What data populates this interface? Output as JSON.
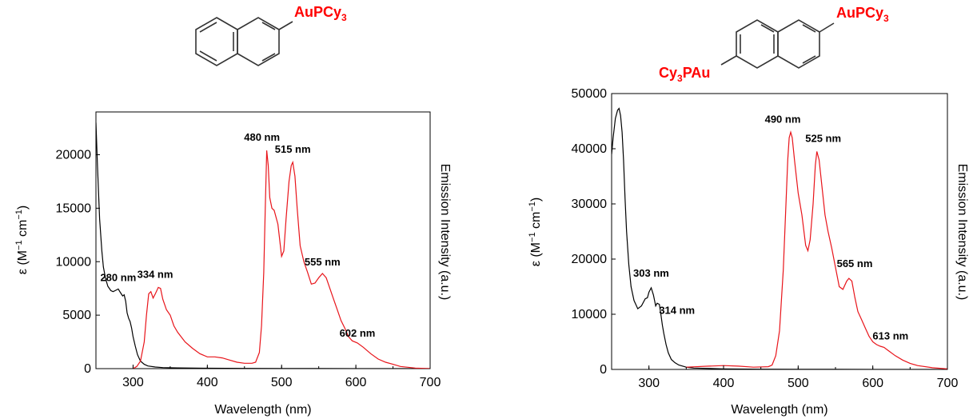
{
  "colors": {
    "absorption": "#000000",
    "emission": "#e8141a",
    "molecule_label": "#ff0000"
  },
  "chart_data": [
    {
      "type": "line",
      "structure_label": {
        "main": "AuPCy",
        "sub": "3"
      },
      "xlabel": "Wavelength (nm)",
      "ylabel": "ε (M⁻¹ cm⁻¹)",
      "y2label": "Emission Intensity (a.u.)",
      "xlim": [
        250,
        700
      ],
      "ylim": [
        0,
        24000
      ],
      "xticks": [
        "300",
        "400",
        "500",
        "600",
        "700"
      ],
      "yticks": [
        "0",
        "5000",
        "10000",
        "15000",
        "20000"
      ],
      "series": [
        {
          "role": "absorption",
          "x": [
            250,
            252,
            255,
            258,
            260,
            263,
            266,
            270,
            273,
            276,
            280,
            283,
            286,
            288,
            290,
            292,
            294,
            296,
            298,
            300,
            303,
            306,
            310,
            315,
            320,
            330,
            340,
            360,
            400,
            450,
            500,
            550,
            600,
            700
          ],
          "y": [
            23000,
            19000,
            14000,
            11000,
            9500,
            8400,
            7700,
            7300,
            7200,
            7300,
            7450,
            7100,
            6800,
            6900,
            6300,
            5200,
            4700,
            4400,
            3800,
            3000,
            2100,
            1300,
            700,
            400,
            250,
            150,
            100,
            70,
            40,
            20,
            10,
            5,
            0,
            0
          ]
        },
        {
          "role": "emission",
          "x": [
            300,
            305,
            310,
            315,
            318,
            321,
            324,
            327,
            330,
            334,
            337,
            340,
            345,
            350,
            355,
            360,
            370,
            380,
            390,
            400,
            410,
            420,
            430,
            440,
            450,
            460,
            465,
            470,
            473,
            476,
            478,
            480,
            482,
            484,
            487,
            490,
            495,
            500,
            503,
            506,
            510,
            513,
            515,
            518,
            521,
            525,
            530,
            535,
            540,
            545,
            550,
            555,
            560,
            565,
            570,
            575,
            580,
            585,
            590,
            595,
            602,
            610,
            620,
            630,
            640,
            650,
            660,
            680,
            700
          ],
          "y": [
            0,
            200,
            700,
            2500,
            5000,
            7000,
            7200,
            6600,
            7000,
            7600,
            7500,
            6500,
            5500,
            5000,
            4000,
            3400,
            2500,
            1900,
            1400,
            1100,
            1100,
            1000,
            800,
            600,
            500,
            500,
            600,
            1500,
            4000,
            9000,
            15000,
            20400,
            19000,
            16000,
            15000,
            14800,
            13500,
            10500,
            11000,
            14000,
            17500,
            19000,
            19300,
            18000,
            15000,
            11500,
            10000,
            9000,
            7900,
            8000,
            8500,
            8900,
            8500,
            7500,
            6500,
            5500,
            4500,
            3800,
            3000,
            2600,
            2400,
            2000,
            1400,
            900,
            600,
            400,
            200,
            50,
            0
          ]
        }
      ],
      "annotations": [
        {
          "text": "280 nm",
          "x": 280,
          "y": 7450
        },
        {
          "text": "334 nm",
          "x": 334,
          "y": 7600
        },
        {
          "text": "480 nm",
          "x": 480,
          "y": 20400
        },
        {
          "text": "515 nm",
          "x": 515,
          "y": 19300
        },
        {
          "text": "555 nm",
          "x": 555,
          "y": 8900
        },
        {
          "text": "602 nm",
          "x": 602,
          "y": 2400
        }
      ]
    },
    {
      "type": "line",
      "structure_label": {
        "main": "AuPCy",
        "sub": "3"
      },
      "structure_label_left": {
        "pre": "Cy",
        "sub": "3",
        "post": "PAu"
      },
      "xlabel": "Wavelength (nm)",
      "ylabel": "ε (M⁻¹ cm⁻¹)",
      "y2label": "Emission Intensity (a.u.)",
      "xlim": [
        250,
        700
      ],
      "ylim": [
        0,
        50000
      ],
      "xticks": [
        "300",
        "400",
        "500",
        "600",
        "700"
      ],
      "yticks": [
        "0",
        "10000",
        "20000",
        "30000",
        "40000",
        "50000"
      ],
      "series": [
        {
          "role": "absorption",
          "x": [
            250,
            252,
            255,
            258,
            260,
            262,
            264,
            266,
            268,
            270,
            273,
            276,
            280,
            285,
            290,
            295,
            298,
            300,
            303,
            306,
            309,
            311,
            314,
            316,
            318,
            320,
            323,
            326,
            330,
            335,
            340,
            350,
            360,
            400,
            450,
            500,
            550,
            600,
            700
          ],
          "y": [
            39000,
            42000,
            45500,
            47000,
            47300,
            46000,
            43000,
            38000,
            31000,
            25000,
            19000,
            15000,
            12500,
            11000,
            11500,
            12800,
            13000,
            14000,
            14800,
            13500,
            11500,
            12000,
            11800,
            10000,
            8000,
            6500,
            4500,
            3000,
            1800,
            1200,
            800,
            400,
            250,
            100,
            50,
            20,
            10,
            0,
            0
          ]
        },
        {
          "role": "emission",
          "x": [
            350,
            380,
            400,
            420,
            440,
            460,
            465,
            470,
            475,
            480,
            483,
            486,
            488,
            490,
            492,
            495,
            500,
            505,
            510,
            513,
            516,
            520,
            523,
            525,
            528,
            532,
            536,
            540,
            545,
            550,
            555,
            560,
            565,
            568,
            572,
            576,
            580,
            585,
            590,
            595,
            600,
            605,
            610,
            615,
            620,
            630,
            640,
            650,
            660,
            680,
            700
          ],
          "y": [
            400,
            600,
            700,
            600,
            400,
            500,
            800,
            2500,
            7000,
            18000,
            28000,
            38000,
            42000,
            43000,
            42000,
            38000,
            32000,
            28000,
            22500,
            21500,
            23500,
            30000,
            37000,
            39500,
            38000,
            33000,
            28000,
            25000,
            22000,
            18500,
            15000,
            14500,
            16000,
            16500,
            16000,
            13000,
            10500,
            9000,
            7500,
            6000,
            5000,
            4500,
            4200,
            4000,
            3500,
            2500,
            1700,
            1100,
            700,
            300,
            100
          ]
        }
      ],
      "annotations": [
        {
          "text": "303 nm",
          "x": 303,
          "y": 14800
        },
        {
          "text": "314 nm",
          "x": 314,
          "y": 11800
        },
        {
          "text": "490 nm",
          "x": 490,
          "y": 43000
        },
        {
          "text": "525 nm",
          "x": 525,
          "y": 39500
        },
        {
          "text": "565 nm",
          "x": 565,
          "y": 16500
        },
        {
          "text": "613 nm",
          "x": 613,
          "y": 4000
        }
      ]
    }
  ]
}
